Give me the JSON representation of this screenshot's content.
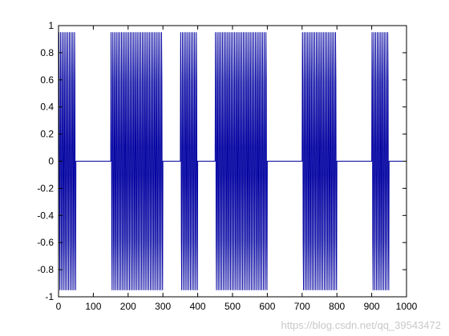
{
  "chart_data": {
    "type": "line",
    "title": "",
    "xlabel": "",
    "ylabel": "",
    "xlim": [
      0,
      1000
    ],
    "ylim": [
      -1,
      1
    ],
    "x_ticks": [
      0,
      100,
      200,
      300,
      400,
      500,
      600,
      700,
      800,
      900,
      1000
    ],
    "y_ticks": [
      -1,
      -0.8,
      -0.6,
      -0.4,
      -0.2,
      0,
      0.2,
      0.4,
      0.6,
      0.8,
      1
    ],
    "x_tick_labels": [
      "0",
      "100",
      "200",
      "300",
      "400",
      "500",
      "600",
      "700",
      "800",
      "900",
      "1000"
    ],
    "y_tick_labels": [
      "-1",
      "-0.8",
      "-0.6",
      "-0.4",
      "-0.2",
      "0",
      "0.2",
      "0.4",
      "0.6",
      "0.8",
      "1"
    ],
    "grid": false,
    "line_color": "#0000a0",
    "bursts": [
      {
        "start": 0,
        "end": 50
      },
      {
        "start": 150,
        "end": 300
      },
      {
        "start": 350,
        "end": 400
      },
      {
        "start": 450,
        "end": 600
      },
      {
        "start": 700,
        "end": 800
      },
      {
        "start": 900,
        "end": 950
      }
    ],
    "burst_amplitude": 0.951,
    "sample_pattern": [
      0,
      0.951,
      0.588,
      -0.588,
      -0.951,
      0,
      0.951,
      0.588,
      -0.588,
      -0.951
    ],
    "sample_step": 1,
    "baseline": 0
  },
  "watermark": "https://blog.csdn.net/qq_39543472"
}
